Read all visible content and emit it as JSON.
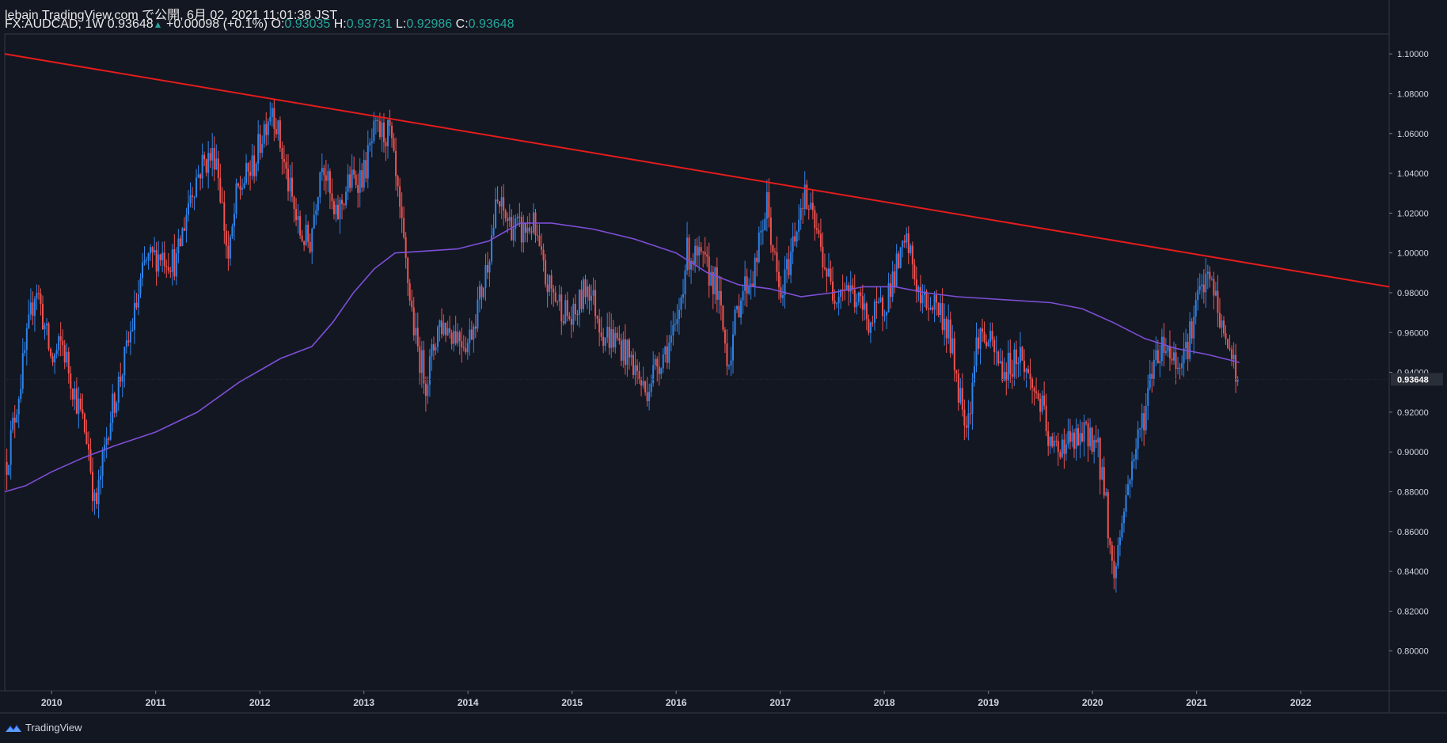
{
  "header": {
    "published": "lebain TradingView.com で公開, 6月 02, 2021 11:01:38 JST",
    "symbol": "FX:AUDCAD, 1W",
    "last": "0.93648",
    "change": "+0.00098 (+0.1%)",
    "o_label": "O:",
    "o": "0.93035",
    "h_label": "H:",
    "h": "0.93731",
    "l_label": "L:",
    "l": "0.92986",
    "c_label": "C:",
    "c": "0.93648"
  },
  "brand": {
    "name": "TradingView"
  },
  "colors": {
    "background": "#131722",
    "up": "#2f83e8",
    "down": "#ef5350",
    "ma": "#7e4fd6",
    "trend": "#e41c1c",
    "text": "#d1d4dc"
  },
  "chart_data": {
    "type": "candlestick",
    "symbol": "FX:AUDCAD",
    "interval": "1W",
    "ylim": [
      0.78,
      1.11
    ],
    "xlim": [
      2009.55,
      2022.85
    ],
    "y_ticks": [
      "1.10000",
      "1.08000",
      "1.06000",
      "1.04000",
      "1.02000",
      "1.00000",
      "0.98000",
      "0.96000",
      "0.94000",
      "0.92000",
      "0.90000",
      "0.88000",
      "0.86000",
      "0.84000",
      "0.82000",
      "0.80000"
    ],
    "x_ticks": [
      "2010",
      "2011",
      "2012",
      "2013",
      "2014",
      "2015",
      "2016",
      "2017",
      "2018",
      "2019",
      "2020",
      "2021",
      "2022"
    ],
    "last_price_label": "0.93648",
    "last_price": 0.93648,
    "price_path": [
      [
        2009.57,
        0.895
      ],
      [
        2009.7,
        0.935
      ],
      [
        2009.85,
        0.985
      ],
      [
        2010.0,
        0.945
      ],
      [
        2010.1,
        0.955
      ],
      [
        2010.22,
        0.93
      ],
      [
        2010.35,
        0.905
      ],
      [
        2010.42,
        0.87
      ],
      [
        2010.55,
        0.915
      ],
      [
        2010.72,
        0.95
      ],
      [
        2010.9,
        0.995
      ],
      [
        2011.05,
        1.0
      ],
      [
        2011.2,
        0.995
      ],
      [
        2011.33,
        1.03
      ],
      [
        2011.45,
        1.045
      ],
      [
        2011.58,
        1.05
      ],
      [
        2011.7,
        0.995
      ],
      [
        2011.78,
        1.03
      ],
      [
        2011.95,
        1.045
      ],
      [
        2012.05,
        1.065
      ],
      [
        2012.12,
        1.075
      ],
      [
        2012.25,
        1.04
      ],
      [
        2012.38,
        1.01
      ],
      [
        2012.48,
        1.005
      ],
      [
        2012.6,
        1.05
      ],
      [
        2012.72,
        1.015
      ],
      [
        2012.85,
        1.035
      ],
      [
        2013.0,
        1.04
      ],
      [
        2013.1,
        1.06
      ],
      [
        2013.25,
        1.06
      ],
      [
        2013.4,
        0.995
      ],
      [
        2013.5,
        0.955
      ],
      [
        2013.6,
        0.935
      ],
      [
        2013.72,
        0.965
      ],
      [
        2013.88,
        0.96
      ],
      [
        2014.0,
        0.955
      ],
      [
        2014.15,
        0.985
      ],
      [
        2014.28,
        1.025
      ],
      [
        2014.4,
        1.015
      ],
      [
        2014.52,
        1.01
      ],
      [
        2014.62,
        1.015
      ],
      [
        2014.75,
        0.985
      ],
      [
        2014.88,
        0.975
      ],
      [
        2015.0,
        0.965
      ],
      [
        2015.15,
        0.985
      ],
      [
        2015.3,
        0.96
      ],
      [
        2015.45,
        0.955
      ],
      [
        2015.58,
        0.945
      ],
      [
        2015.7,
        0.93
      ],
      [
        2015.82,
        0.945
      ],
      [
        2016.0,
        0.96
      ],
      [
        2016.1,
        1.0
      ],
      [
        2016.25,
        0.995
      ],
      [
        2016.38,
        0.985
      ],
      [
        2016.5,
        0.945
      ],
      [
        2016.62,
        0.98
      ],
      [
        2016.75,
        0.99
      ],
      [
        2016.87,
        1.025
      ],
      [
        2017.0,
        0.975
      ],
      [
        2017.12,
        1.005
      ],
      [
        2017.22,
        1.03
      ],
      [
        2017.35,
        1.01
      ],
      [
        2017.5,
        0.98
      ],
      [
        2017.62,
        0.985
      ],
      [
        2017.75,
        0.975
      ],
      [
        2017.87,
        0.965
      ],
      [
        2018.0,
        0.975
      ],
      [
        2018.1,
        0.99
      ],
      [
        2018.22,
        1.005
      ],
      [
        2018.35,
        0.975
      ],
      [
        2018.5,
        0.975
      ],
      [
        2018.62,
        0.96
      ],
      [
        2018.72,
        0.93
      ],
      [
        2018.8,
        0.915
      ],
      [
        2018.9,
        0.96
      ],
      [
        2019.0,
        0.955
      ],
      [
        2019.15,
        0.94
      ],
      [
        2019.3,
        0.95
      ],
      [
        2019.4,
        0.935
      ],
      [
        2019.5,
        0.925
      ],
      [
        2019.6,
        0.9
      ],
      [
        2019.72,
        0.905
      ],
      [
        2019.85,
        0.905
      ],
      [
        2019.98,
        0.91
      ],
      [
        2020.05,
        0.9
      ],
      [
        2020.12,
        0.88
      ],
      [
        2020.2,
        0.835
      ],
      [
        2020.28,
        0.865
      ],
      [
        2020.38,
        0.895
      ],
      [
        2020.5,
        0.92
      ],
      [
        2020.6,
        0.95
      ],
      [
        2020.7,
        0.955
      ],
      [
        2020.8,
        0.945
      ],
      [
        2020.92,
        0.955
      ],
      [
        2021.0,
        0.975
      ],
      [
        2021.08,
        0.985
      ],
      [
        2021.15,
        0.985
      ],
      [
        2021.25,
        0.96
      ],
      [
        2021.33,
        0.95
      ],
      [
        2021.41,
        0.936
      ]
    ],
    "moving_average": {
      "label": "MA",
      "points": [
        [
          2009.55,
          0.88
        ],
        [
          2009.75,
          0.883
        ],
        [
          2010.0,
          0.89
        ],
        [
          2010.3,
          0.897
        ],
        [
          2010.6,
          0.903
        ],
        [
          2011.0,
          0.91
        ],
        [
          2011.4,
          0.92
        ],
        [
          2011.8,
          0.935
        ],
        [
          2012.2,
          0.947
        ],
        [
          2012.5,
          0.953
        ],
        [
          2012.7,
          0.965
        ],
        [
          2012.9,
          0.98
        ],
        [
          2013.1,
          0.992
        ],
        [
          2013.3,
          1.0
        ],
        [
          2013.6,
          1.001
        ],
        [
          2013.9,
          1.002
        ],
        [
          2014.2,
          1.006
        ],
        [
          2014.5,
          1.015
        ],
        [
          2014.8,
          1.015
        ],
        [
          2015.2,
          1.012
        ],
        [
          2015.6,
          1.007
        ],
        [
          2016.0,
          1.0
        ],
        [
          2016.3,
          0.99
        ],
        [
          2016.6,
          0.984
        ],
        [
          2016.9,
          0.982
        ],
        [
          2017.2,
          0.978
        ],
        [
          2017.5,
          0.98
        ],
        [
          2017.8,
          0.983
        ],
        [
          2018.1,
          0.983
        ],
        [
          2018.4,
          0.98
        ],
        [
          2018.7,
          0.978
        ],
        [
          2019.0,
          0.977
        ],
        [
          2019.3,
          0.976
        ],
        [
          2019.6,
          0.975
        ],
        [
          2019.9,
          0.972
        ],
        [
          2020.2,
          0.965
        ],
        [
          2020.5,
          0.957
        ],
        [
          2020.8,
          0.952
        ],
        [
          2021.1,
          0.949
        ],
        [
          2021.41,
          0.945
        ]
      ]
    },
    "trendline": {
      "from": [
        2009.55,
        1.1
      ],
      "to": [
        2022.85,
        0.983
      ]
    }
  }
}
